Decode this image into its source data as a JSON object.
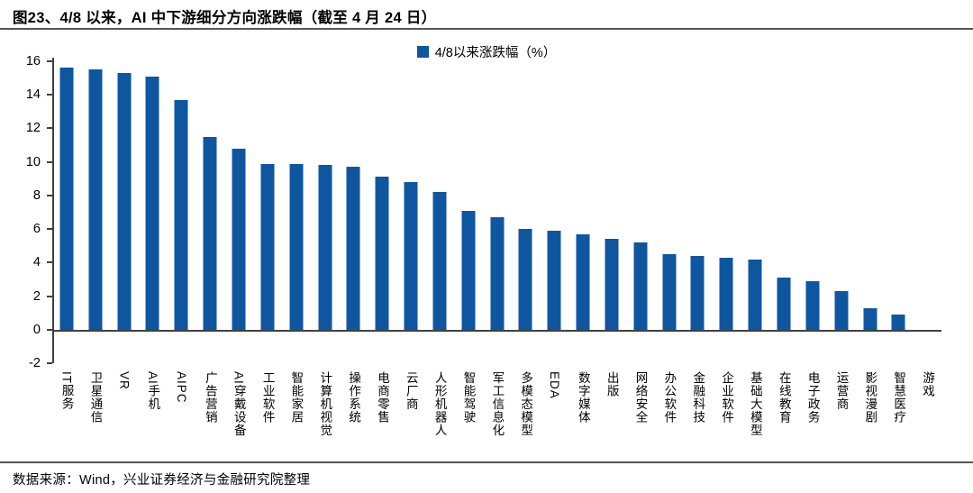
{
  "title": "图23、4/8 以来，AI 中下游细分方向涨跌幅（截至 4 月 24 日）",
  "source": "数据来源：Wind，兴业证券经济与金融研究院整理",
  "colors": {
    "bar": "#0f56a0",
    "axis": "#404040",
    "divider": "#55555d"
  },
  "chart_data": {
    "type": "bar",
    "title": "图23、4/8 以来，AI 中下游细分方向涨跌幅（截至 4 月 24 日）",
    "legend": [
      "4/8以来涨跌幅（%）"
    ],
    "legend_position": "top-center",
    "grid": false,
    "xlabel": "",
    "ylabel": "",
    "ylim": [
      -2,
      16
    ],
    "yticks": [
      16,
      14,
      12,
      10,
      8,
      6,
      4,
      2,
      0,
      -2
    ],
    "categories": [
      "IT服务",
      "卫星通信",
      "VR",
      "AI手机",
      "AIPC",
      "广告营销",
      "AI穿戴设备",
      "工业软件",
      "智能家居",
      "计算机视觉",
      "操作系统",
      "电商零售",
      "云厂商",
      "人形机器人",
      "智能驾驶",
      "军工信息化",
      "多模态模型",
      "EDA",
      "数字媒体",
      "出版",
      "网络安全",
      "办公软件",
      "金融科技",
      "企业软件",
      "基础大模型",
      "在线教育",
      "电子政务",
      "运营商",
      "影视漫剧",
      "智慧医疗",
      "游戏"
    ],
    "values": [
      15.6,
      15.5,
      15.3,
      15.1,
      13.7,
      11.5,
      10.8,
      9.9,
      9.9,
      9.8,
      9.7,
      9.1,
      8.8,
      8.2,
      7.1,
      6.7,
      6.0,
      5.9,
      5.7,
      5.4,
      5.2,
      4.5,
      4.4,
      4.3,
      4.2,
      3.1,
      2.9,
      2.3,
      1.3,
      0.9,
      -0.1
    ]
  }
}
